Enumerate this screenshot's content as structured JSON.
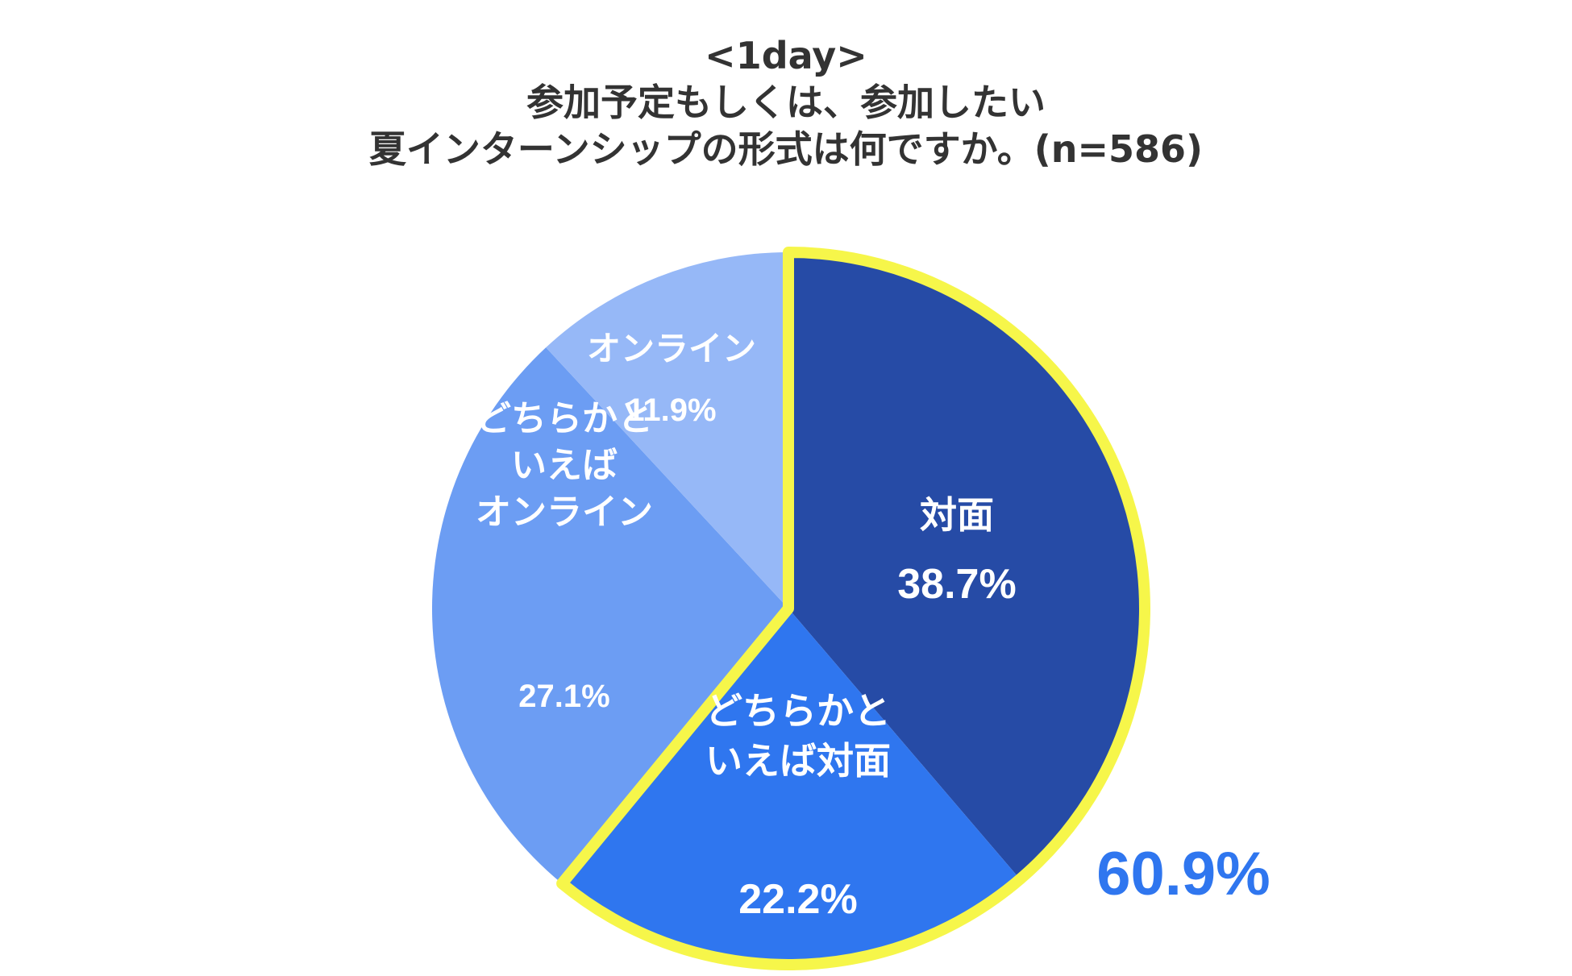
{
  "title": {
    "line1": "<1day>",
    "line2": "参加予定もしくは、参加したい",
    "line3": "夏インターンシップの形式は何ですか。(n=586)"
  },
  "chart_data": {
    "type": "pie",
    "slices": [
      {
        "label": "対面",
        "value": 38.7,
        "display": "38.7%",
        "color": "#264BA6",
        "label_lines": [
          "対面"
        ]
      },
      {
        "label": "どちらかといえば対面",
        "value": 22.2,
        "display": "22.2%",
        "color": "#2F76EF",
        "label_lines": [
          "どちらかと",
          "いえば対面"
        ]
      },
      {
        "label": "どちらかといえばオンライン",
        "value": 27.1,
        "display": "27.1%",
        "color": "#6C9DF3",
        "label_lines": [
          "どちらかと",
          "いえば",
          "オンライン"
        ]
      },
      {
        "label": "オンライン",
        "value": 11.9,
        "display": "11.9%",
        "color": "#96B8F7",
        "label_lines": [
          "オンライン"
        ]
      }
    ],
    "start_direction": "top",
    "direction": "clockwise",
    "highlight": {
      "slices": [
        "対面",
        "どちらかといえば対面"
      ],
      "total": "60.9%",
      "outline_color": "#F6F64A",
      "total_color": "#2F76EF"
    }
  }
}
